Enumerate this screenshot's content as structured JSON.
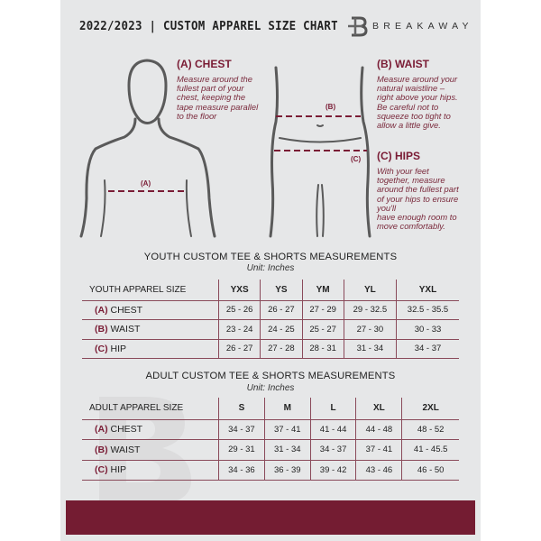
{
  "header": {
    "title": "2022/2023  |  CUSTOM APPAREL SIZE CHART",
    "brand": "BREAKAWAY",
    "logo_letter": "B"
  },
  "guide": {
    "chest": {
      "heading": "(A) CHEST",
      "desc": "Measure around the\nfullest part of your\nchest, keeping the\ntape measure parallel\nto the floor",
      "marker": "(A)"
    },
    "waist": {
      "heading": "(B) WAIST",
      "desc": "Measure around your\nnatural waistline –\nright above your hips.\nBe careful not to\nsqueeze too tight to\nallow a little give.",
      "marker": "(B)"
    },
    "hips": {
      "heading": "(C) HIPS",
      "desc": "With your feet\ntogether, measure\naround the fullest part\nof your hips to ensure\nyou'll\nhave enough room to\nmove comfortably.",
      "marker": "(C)"
    }
  },
  "youth": {
    "title": "YOUTH CUSTOM TEE & SHORTS MEASUREMENTS",
    "unit": "Unit: Inches",
    "header": "YOUTH APPAREL SIZE",
    "sizes": [
      "YXS",
      "YS",
      "YM",
      "YL",
      "YXL"
    ],
    "rows": [
      {
        "tag": "(A)",
        "label": "CHEST",
        "values": [
          "25 - 26",
          "26 - 27",
          "27 - 29",
          "29 - 32.5",
          "32.5 - 35.5"
        ]
      },
      {
        "tag": "(B)",
        "label": "WAIST",
        "values": [
          "23 - 24",
          "24 - 25",
          "25 - 27",
          "27 - 30",
          "30 - 33"
        ]
      },
      {
        "tag": "(C)",
        "label": "HIP",
        "values": [
          "26 - 27",
          "27 - 28",
          "28 - 31",
          "31 - 34",
          "34 - 37"
        ]
      }
    ]
  },
  "adult": {
    "title": "ADULT CUSTOM TEE & SHORTS MEASUREMENTS",
    "unit": "Unit: Inches",
    "header": "ADULT APPAREL SIZE",
    "sizes": [
      "S",
      "M",
      "L",
      "XL",
      "2XL"
    ],
    "rows": [
      {
        "tag": "(A)",
        "label": "CHEST",
        "values": [
          "34 - 37",
          "37 - 41",
          "41 - 44",
          "44 - 48",
          "48 - 52"
        ]
      },
      {
        "tag": "(B)",
        "label": "WAIST",
        "values": [
          "29 - 31",
          "31 - 34",
          "34 - 37",
          "37 - 41",
          "41 - 45.5"
        ]
      },
      {
        "tag": "(C)",
        "label": "HIP",
        "values": [
          "34 - 36",
          "36 - 39",
          "39 - 42",
          "43 - 46",
          "46 - 50"
        ]
      }
    ]
  },
  "colors": {
    "accent": "#741c32",
    "background": "#e6e7e8"
  }
}
